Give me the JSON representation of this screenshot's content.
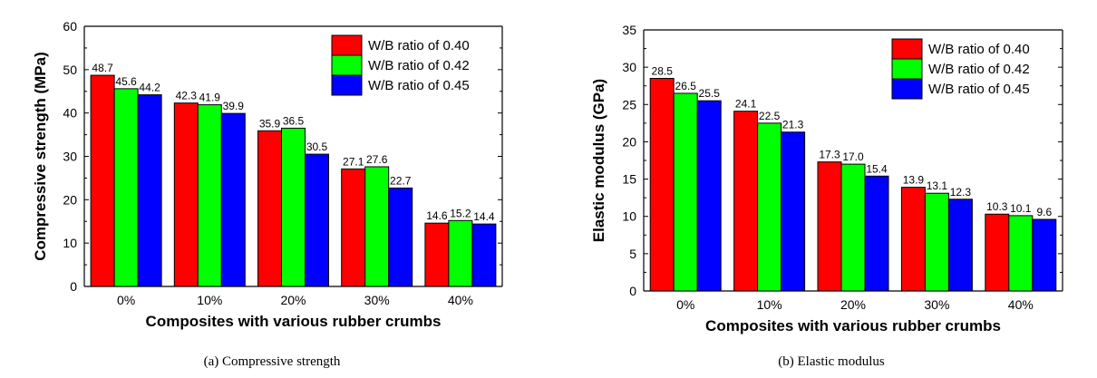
{
  "chart_data": [
    {
      "type": "bar",
      "caption": "(a) Compressive strength",
      "xlabel": "Composites with various rubber crumbs",
      "ylabel": "Compressive strength (MPa)",
      "categories": [
        "0%",
        "10%",
        "20%",
        "30%",
        "40%"
      ],
      "ylim": [
        0,
        60
      ],
      "yticks": [
        "0",
        "10",
        "20",
        "30",
        "40",
        "50",
        "60"
      ],
      "legend_position": "top-right",
      "series": [
        {
          "name": "W/B ratio of 0.40",
          "color": "#ff0000",
          "values": [
            48.7,
            42.3,
            35.9,
            27.1,
            14.6
          ],
          "labels": [
            "48.7",
            "42.3",
            "35.9",
            "27.1",
            "14.6"
          ]
        },
        {
          "name": "W/B ratio of 0.42",
          "color": "#00ff00",
          "values": [
            45.6,
            41.9,
            36.5,
            27.6,
            15.2
          ],
          "labels": [
            "45.6",
            "41.9",
            "36.5",
            "27.6",
            "15.2"
          ]
        },
        {
          "name": "W/B ratio of 0.45",
          "color": "#0000ff",
          "values": [
            44.2,
            39.9,
            30.5,
            22.7,
            14.4
          ],
          "labels": [
            "44.2",
            "39.9",
            "30.5",
            "22.7",
            "14.4"
          ]
        }
      ]
    },
    {
      "type": "bar",
      "caption": "(b) Elastic modulus",
      "xlabel": "Composites with various rubber crumbs",
      "ylabel": "Elastic modulus (GPa)",
      "categories": [
        "0%",
        "10%",
        "20%",
        "30%",
        "40%"
      ],
      "ylim": [
        0,
        35
      ],
      "yticks": [
        "0",
        "5",
        "10",
        "15",
        "20",
        "25",
        "30",
        "35"
      ],
      "legend_position": "top-right",
      "series": [
        {
          "name": "W/B ratio of 0.40",
          "color": "#ff0000",
          "values": [
            28.5,
            24.1,
            17.3,
            13.9,
            10.3
          ],
          "labels": [
            "28.5",
            "24.1",
            "17.3",
            "13.9",
            "10.3"
          ]
        },
        {
          "name": "W/B ratio of 0.42",
          "color": "#00ff00",
          "values": [
            26.5,
            22.5,
            17.0,
            13.1,
            10.1
          ],
          "labels": [
            "26.5",
            "22.5",
            "17.0",
            "13.1",
            "10.1"
          ]
        },
        {
          "name": "W/B ratio of 0.45",
          "color": "#0000ff",
          "values": [
            25.5,
            21.3,
            15.4,
            12.3,
            9.6
          ],
          "labels": [
            "25.5",
            "21.3",
            "15.4",
            "12.3",
            "9.6"
          ]
        }
      ]
    }
  ]
}
